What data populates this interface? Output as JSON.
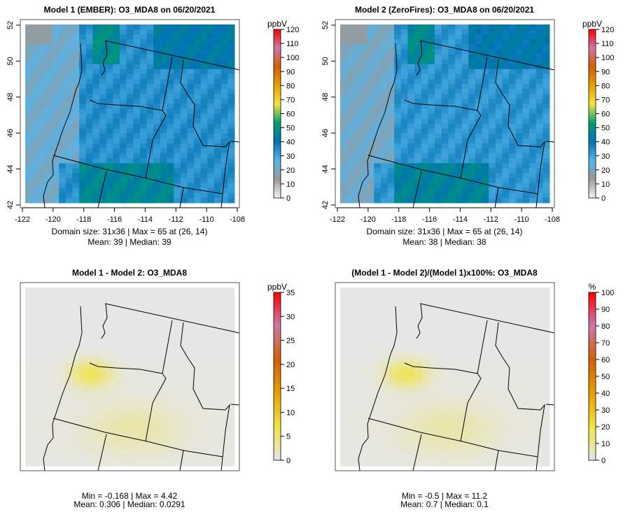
{
  "chart_data": [
    {
      "type": "heatmap",
      "title": "Model 1 (EMBER): O3_MDA8 on 06/20/2021",
      "units": "ppbV",
      "xticks": [
        "-122",
        "-120",
        "-118",
        "-116",
        "-114",
        "-112",
        "-110",
        "-108"
      ],
      "yticks": [
        "42",
        "44",
        "46",
        "48",
        "50",
        "52"
      ],
      "colorbar_ticks": [
        "0",
        "10",
        "20",
        "30",
        "40",
        "50",
        "60",
        "70",
        "80",
        "90",
        "100",
        "110",
        "120"
      ],
      "colorbar_range": [
        0,
        120
      ],
      "stats_line1": "Domain size: 31x36 | Max = 65 at (26, 14)",
      "stats_line2": "Mean: 39 |  Median: 39",
      "max": 65,
      "mean": 39,
      "median": 39
    },
    {
      "type": "heatmap",
      "title": "Model 2 (ZeroFires): O3_MDA8 on 06/20/2021",
      "units": "ppbV",
      "xticks": [
        "-122",
        "-120",
        "-118",
        "-116",
        "-114",
        "-112",
        "-110",
        "-108"
      ],
      "yticks": [
        "42",
        "44",
        "46",
        "48",
        "50",
        "52"
      ],
      "colorbar_ticks": [
        "0",
        "10",
        "20",
        "30",
        "40",
        "50",
        "60",
        "70",
        "80",
        "90",
        "100",
        "110",
        "120"
      ],
      "colorbar_range": [
        0,
        120
      ],
      "stats_line1": "Domain size: 31x36 | Max = 65 at (26, 14)",
      "stats_line2": "Mean: 38 |  Median: 38",
      "max": 65,
      "mean": 38,
      "median": 38
    },
    {
      "type": "heatmap",
      "title": "Model 1 - Model 2: O3_MDA8",
      "units": "ppbV",
      "colorbar_ticks": [
        "0",
        "5",
        "10",
        "15",
        "20",
        "25",
        "30",
        "35"
      ],
      "colorbar_range": [
        0,
        35
      ],
      "stats_line1": "Min = -0.168 | Max = 4.42",
      "stats_line2": "Mean: 0.306 |  Median: 0.0291",
      "min": -0.168,
      "max": 4.42,
      "mean": 0.306,
      "median": 0.0291
    },
    {
      "type": "heatmap",
      "title": "(Model 1 - Model 2)/(Model 1)x100%: O3_MDA8",
      "units": "%",
      "colorbar_ticks": [
        "0",
        "10",
        "20",
        "30",
        "40",
        "50",
        "60",
        "70",
        "80",
        "90",
        "100"
      ],
      "colorbar_range": [
        0,
        100
      ],
      "stats_line1": "Min = -0.5 | Max = 11.2",
      "stats_line2": "Mean: 0.7 |  Median: 0.1",
      "min": -0.5,
      "max": 11.2,
      "mean": 0.7,
      "median": 0.1
    }
  ],
  "colors": {
    "abs_scale": [
      "#f2f2f2",
      "#999999",
      "#56b4e9",
      "#0072b2",
      "#009e73",
      "#f0e442",
      "#e69f00",
      "#d55e00",
      "#cc79a7",
      "#ff0000"
    ],
    "diff_scale": [
      "#e6e6e6",
      "#f0e442",
      "#e69f00",
      "#d55e00",
      "#cc79a7",
      "#ff0000"
    ]
  }
}
